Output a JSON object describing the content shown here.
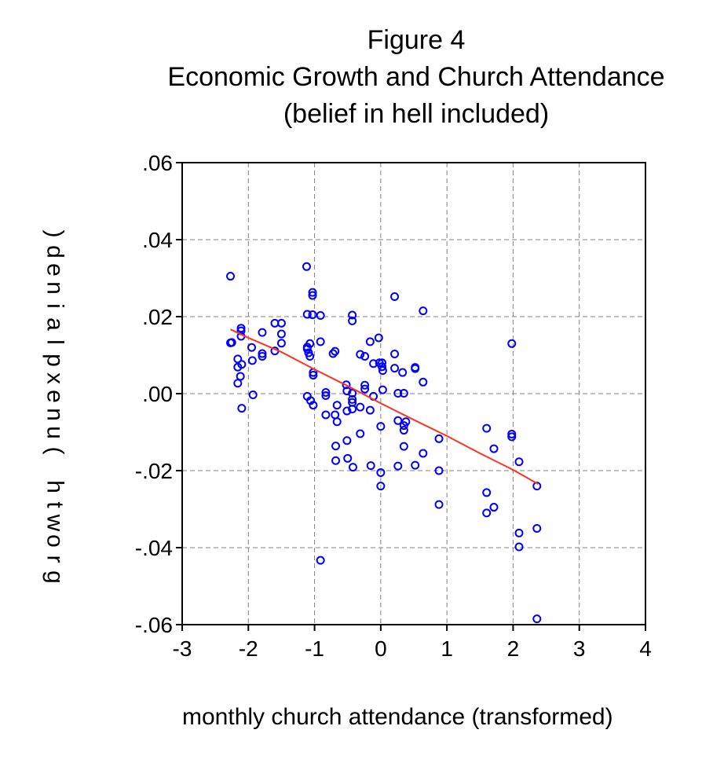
{
  "chart_data": {
    "type": "scatter",
    "title": "Figure 4",
    "subtitle": [
      "Economic Growth and Church Attendance",
      "(belief in hell included)"
    ],
    "xlabel": "monthly church attendance (transformed)",
    "ylabel": "growth (unexplained)",
    "xlim": [
      -3,
      4
    ],
    "ylim": [
      -0.06,
      0.06
    ],
    "x_ticks": [
      -3,
      -2,
      -1,
      0,
      1,
      2,
      3,
      4
    ],
    "x_tick_labels": [
      "-3",
      "-2",
      "-1",
      "0",
      "1",
      "2",
      "3",
      "4"
    ],
    "y_ticks": [
      0.06,
      0.04,
      0.02,
      0.0,
      -0.02,
      -0.04,
      -0.06
    ],
    "y_tick_labels": [
      ".06",
      ".04",
      ".02",
      ".00",
      "-.02",
      "-.04",
      "-.06"
    ],
    "grid": true,
    "colors": {
      "points": "#0000ff",
      "fit_line": "#ff3322",
      "grid": "#808080"
    },
    "points": [
      [
        -2.27,
        0.0305
      ],
      [
        -2.27,
        0.0132
      ],
      [
        -2.25,
        0.0133
      ],
      [
        -2.16,
        0.009
      ],
      [
        -2.16,
        0.0069
      ],
      [
        -2.16,
        0.0027
      ],
      [
        -2.12,
        0.0045
      ],
      [
        -2.11,
        0.017
      ],
      [
        -2.11,
        0.0163
      ],
      [
        -2.11,
        0.0149
      ],
      [
        -2.1,
        0.0076
      ],
      [
        -2.1,
        -0.0038
      ],
      [
        -1.95,
        0.012
      ],
      [
        -1.94,
        0.0086
      ],
      [
        -1.93,
        -0.0003
      ],
      [
        -1.79,
        0.0159
      ],
      [
        -1.79,
        0.0104
      ],
      [
        -1.79,
        0.0097
      ],
      [
        -1.6,
        0.0183
      ],
      [
        -1.6,
        0.0111
      ],
      [
        -1.5,
        0.0183
      ],
      [
        -1.5,
        0.0155
      ],
      [
        -1.5,
        0.0131
      ],
      [
        -1.12,
        0.033
      ],
      [
        -1.11,
        0.0206
      ],
      [
        -1.11,
        0.0121
      ],
      [
        -1.11,
        0.0116
      ],
      [
        -1.11,
        -0.0007
      ],
      [
        -1.09,
        0.0106
      ],
      [
        -1.07,
        0.013
      ],
      [
        -1.07,
        0.0097
      ],
      [
        -1.06,
        -0.0018
      ],
      [
        -1.03,
        0.0263
      ],
      [
        -1.03,
        0.0255
      ],
      [
        -1.03,
        0.0205
      ],
      [
        -1.02,
        0.0055
      ],
      [
        -1.02,
        0.0048
      ],
      [
        -1.02,
        -0.003
      ],
      [
        -0.91,
        0.0203
      ],
      [
        -0.91,
        0.0135
      ],
      [
        -0.91,
        -0.0433
      ],
      [
        -0.83,
        0.0003
      ],
      [
        -0.83,
        -0.0005
      ],
      [
        -0.83,
        -0.0055
      ],
      [
        -0.72,
        0.0104
      ],
      [
        -0.69,
        0.011
      ],
      [
        -0.69,
        -0.0055
      ],
      [
        -0.68,
        -0.0136
      ],
      [
        -0.68,
        -0.0174
      ],
      [
        -0.66,
        -0.003
      ],
      [
        -0.66,
        -0.0073
      ],
      [
        -0.52,
        0.0023
      ],
      [
        -0.51,
        0.0007
      ],
      [
        -0.51,
        -0.0045
      ],
      [
        -0.51,
        -0.0122
      ],
      [
        -0.5,
        -0.0168
      ],
      [
        -0.43,
        0.0204
      ],
      [
        -0.43,
        0.0189
      ],
      [
        -0.43,
        0.0001
      ],
      [
        -0.43,
        -0.0015
      ],
      [
        -0.43,
        -0.0023
      ],
      [
        -0.43,
        -0.004
      ],
      [
        -0.42,
        -0.0191
      ],
      [
        -0.31,
        0.0102
      ],
      [
        -0.31,
        -0.0035
      ],
      [
        -0.31,
        -0.0104
      ],
      [
        -0.24,
        0.0097
      ],
      [
        -0.24,
        0.0022
      ],
      [
        -0.24,
        0.0012
      ],
      [
        -0.16,
        0.0135
      ],
      [
        -0.16,
        -0.0043
      ],
      [
        -0.15,
        -0.0187
      ],
      [
        -0.11,
        0.0078
      ],
      [
        -0.11,
        -0.0007
      ],
      [
        -0.03,
        0.0145
      ],
      [
        -0.02,
        0.008
      ],
      [
        0.0,
        -0.0085
      ],
      [
        0.0,
        -0.0205
      ],
      [
        0.0,
        -0.024
      ],
      [
        0.02,
        0.008
      ],
      [
        0.02,
        0.007
      ],
      [
        0.03,
        0.006
      ],
      [
        0.03,
        0.001
      ],
      [
        0.21,
        0.0252
      ],
      [
        0.21,
        0.0103
      ],
      [
        0.21,
        0.0066
      ],
      [
        0.26,
        0.0001
      ],
      [
        0.26,
        -0.007
      ],
      [
        0.26,
        -0.0188
      ],
      [
        0.33,
        0.0055
      ],
      [
        0.35,
        0.0001
      ],
      [
        0.35,
        -0.0083
      ],
      [
        0.35,
        -0.0095
      ],
      [
        0.35,
        -0.0137
      ],
      [
        0.38,
        -0.0073
      ],
      [
        0.52,
        0.0068
      ],
      [
        0.52,
        0.0065
      ],
      [
        0.52,
        -0.0186
      ],
      [
        0.64,
        0.0215
      ],
      [
        0.64,
        0.003
      ],
      [
        0.64,
        -0.0155
      ],
      [
        0.88,
        -0.0117
      ],
      [
        0.88,
        -0.02
      ],
      [
        0.88,
        -0.0288
      ],
      [
        1.6,
        -0.009
      ],
      [
        1.6,
        -0.0257
      ],
      [
        1.6,
        -0.031
      ],
      [
        1.71,
        -0.0143
      ],
      [
        1.71,
        -0.0295
      ],
      [
        1.98,
        0.013
      ],
      [
        1.98,
        -0.0105
      ],
      [
        1.98,
        -0.0112
      ],
      [
        2.09,
        -0.0177
      ],
      [
        2.09,
        -0.0362
      ],
      [
        2.09,
        -0.0398
      ],
      [
        2.36,
        -0.024
      ],
      [
        2.36,
        -0.035
      ],
      [
        2.36,
        -0.0585
      ]
    ],
    "fit_line": {
      "x": [
        -2.27,
        -2.0,
        -1.5,
        -1.0,
        -0.5,
        0.0,
        0.5,
        1.0,
        1.5,
        2.0,
        2.38
      ],
      "y": [
        0.0167,
        0.0145,
        0.0108,
        0.0063,
        0.002,
        -0.0025,
        -0.0068,
        -0.011,
        -0.0155,
        -0.0198,
        -0.0235
      ]
    }
  }
}
